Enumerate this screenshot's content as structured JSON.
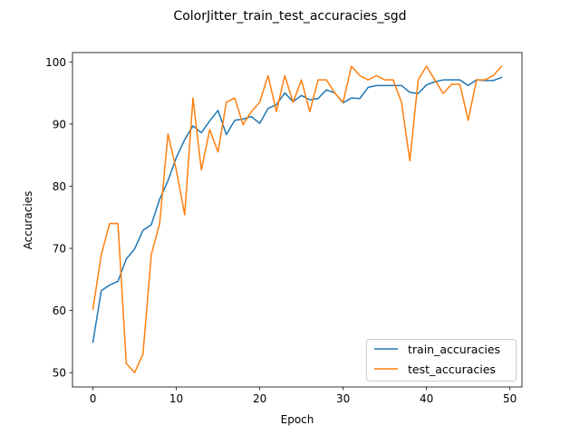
{
  "chart_data": {
    "type": "line",
    "title": "ColorJitter_train_test_accuracies_sgd",
    "xlabel": "Epoch",
    "ylabel": "Accuracies",
    "xlim": [
      -2.45,
      51.45
    ],
    "ylim": [
      47.7,
      101.5
    ],
    "xticks": [
      0,
      10,
      20,
      30,
      40,
      50
    ],
    "yticks": [
      50,
      60,
      70,
      80,
      90,
      100
    ],
    "grid": false,
    "legend_position": "lower-right",
    "x": [
      0,
      1,
      2,
      3,
      4,
      5,
      6,
      7,
      8,
      9,
      10,
      11,
      12,
      13,
      14,
      15,
      16,
      17,
      18,
      19,
      20,
      21,
      22,
      23,
      24,
      25,
      26,
      27,
      28,
      29,
      30,
      31,
      32,
      33,
      34,
      35,
      36,
      37,
      38,
      39,
      40,
      41,
      42,
      43,
      44,
      45,
      46,
      47,
      48,
      49
    ],
    "series": [
      {
        "name": "train_accuracies",
        "color": "#1f77b4",
        "values": [
          54.9,
          63.2,
          64.1,
          64.7,
          68.3,
          69.9,
          72.9,
          73.8,
          77.9,
          80.9,
          84.6,
          87.5,
          89.7,
          88.6,
          90.5,
          92.2,
          88.3,
          90.6,
          90.8,
          91.2,
          90.1,
          92.5,
          93.1,
          95.0,
          93.6,
          94.6,
          93.9,
          94.1,
          95.5,
          95.0,
          93.4,
          94.2,
          94.1,
          95.9,
          96.2,
          96.2,
          96.2,
          96.2,
          95.1,
          94.9,
          96.3,
          96.8,
          97.1,
          97.1,
          97.1,
          96.2,
          97.1,
          97.0,
          97.0,
          97.5
        ]
      },
      {
        "name": "test_accuracies",
        "color": "#ff7f0e",
        "values": [
          60.2,
          69.0,
          74.0,
          74.0,
          51.5,
          50.0,
          53.0,
          69.0,
          74.0,
          88.4,
          82.6,
          75.4,
          94.2,
          82.6,
          89.1,
          85.5,
          93.5,
          94.2,
          89.9,
          92.0,
          93.5,
          97.8,
          92.0,
          97.8,
          93.5,
          97.1,
          92.0,
          97.1,
          97.1,
          95.0,
          93.5,
          99.3,
          97.8,
          97.1,
          97.8,
          97.1,
          97.1,
          93.5,
          84.1,
          97.1,
          99.3,
          97.1,
          94.9,
          96.4,
          96.4,
          90.6,
          97.1,
          97.1,
          97.8,
          99.3
        ]
      }
    ]
  }
}
